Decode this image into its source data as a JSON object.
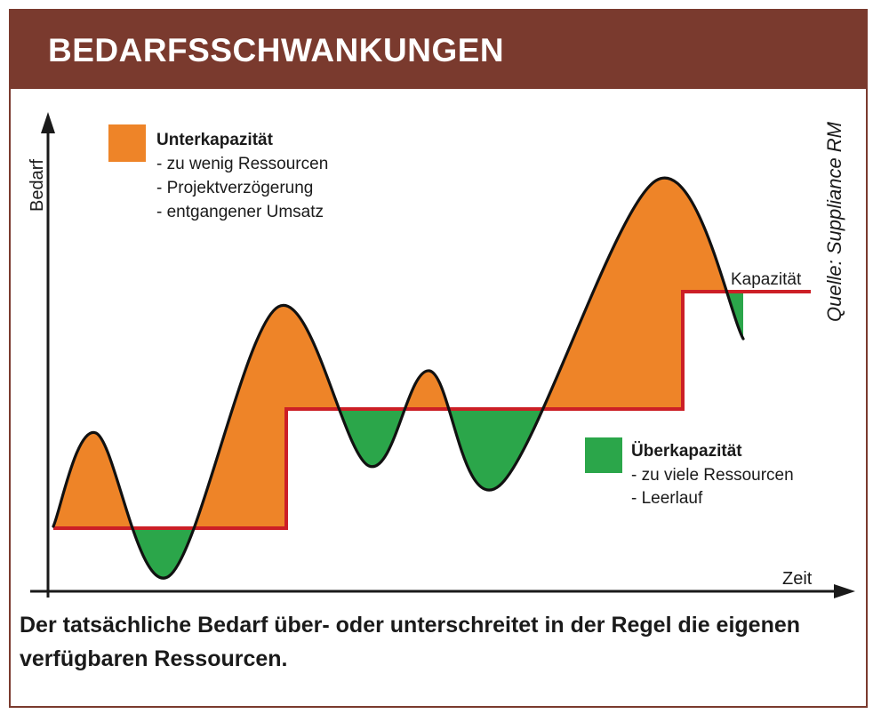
{
  "header": {
    "title": "BEDARFSSCHWANKUNGEN"
  },
  "axes": {
    "y_label": "Bedarf",
    "x_label": "Zeit"
  },
  "capacity_label": "Kapazität",
  "source": "Quelle: Suppliance RM",
  "legend": {
    "under": {
      "title": "Unterkapazität",
      "items": [
        "- zu wenig Ressourcen",
        "- Projektverzögerung",
        "- entgangener Umsatz"
      ],
      "color": "#ee8428"
    },
    "over": {
      "title": "Überkapazität",
      "items": [
        "- zu viele Ressourcen",
        "- Leerlauf"
      ],
      "color": "#2ba64a"
    }
  },
  "colors": {
    "header": "#7a3a2e",
    "capacity_line": "#cc1f26",
    "demand_curve": "#111111",
    "axis": "#1a1a1a"
  },
  "caption": "Der tatsächliche Bedarf über- oder unterschreitet in der Regel die eigenen verfügbaren Ressourcen."
}
